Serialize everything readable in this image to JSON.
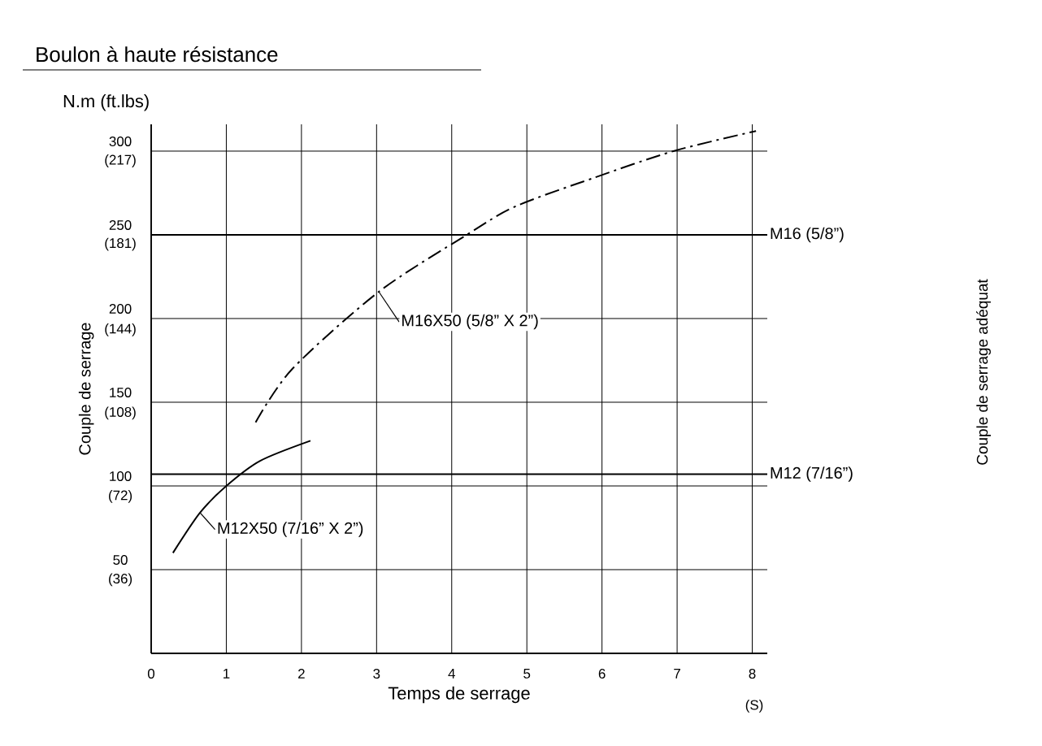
{
  "chart_data": {
    "type": "line",
    "title": "Boulon à haute résistance",
    "xlabel": "Temps de serrage",
    "ylabel": "Couple de serrage",
    "annotations": [
      "N.m (ft.lbs)",
      "(S)",
      "Couple de serrage adéquat"
    ],
    "xlim": [
      0,
      8.2
    ],
    "ylim": [
      0,
      316
    ],
    "xticks": [
      0,
      1,
      2,
      3,
      4,
      5,
      6,
      7,
      8
    ],
    "yticks": [
      50,
      100,
      150,
      200,
      250,
      300
    ],
    "y2lim": [
      0,
      228.6
    ],
    "y2ticks": [
      {
        "value": 36,
        "label": "(36)"
      },
      {
        "value": 72,
        "label": "(72)"
      },
      {
        "value": 108,
        "label": "(108)"
      },
      {
        "value": 144,
        "label": "(144)"
      },
      {
        "value": 181,
        "label": "(181)"
      },
      {
        "value": 217,
        "label": "(217)"
      }
    ],
    "grid": true,
    "marker": "none",
    "ref_lines": [
      {
        "axis": "y",
        "value": 250,
        "label": "M16 (5/8”)"
      },
      {
        "axis": "y",
        "value": 107,
        "label": "M12 (7/16”)"
      }
    ],
    "series": [
      {
        "name": "M12X50 (7/16” X 2”)",
        "color": "#000000",
        "line_style": "solid",
        "x": [
          0.29,
          0.65,
          1.0,
          1.45,
          2.12
        ],
        "values": [
          60,
          84,
          100,
          115,
          127
        ]
      },
      {
        "name": "M16X50 (5/8” X 2”)",
        "color": "#000000",
        "line_style": "dashed",
        "x": [
          1.39,
          1.88,
          3.03,
          4.2,
          4.85,
          5.89,
          6.95,
          8.05
        ],
        "values": [
          138,
          170,
          216,
          250,
          267,
          284,
          300,
          312
        ]
      }
    ]
  }
}
